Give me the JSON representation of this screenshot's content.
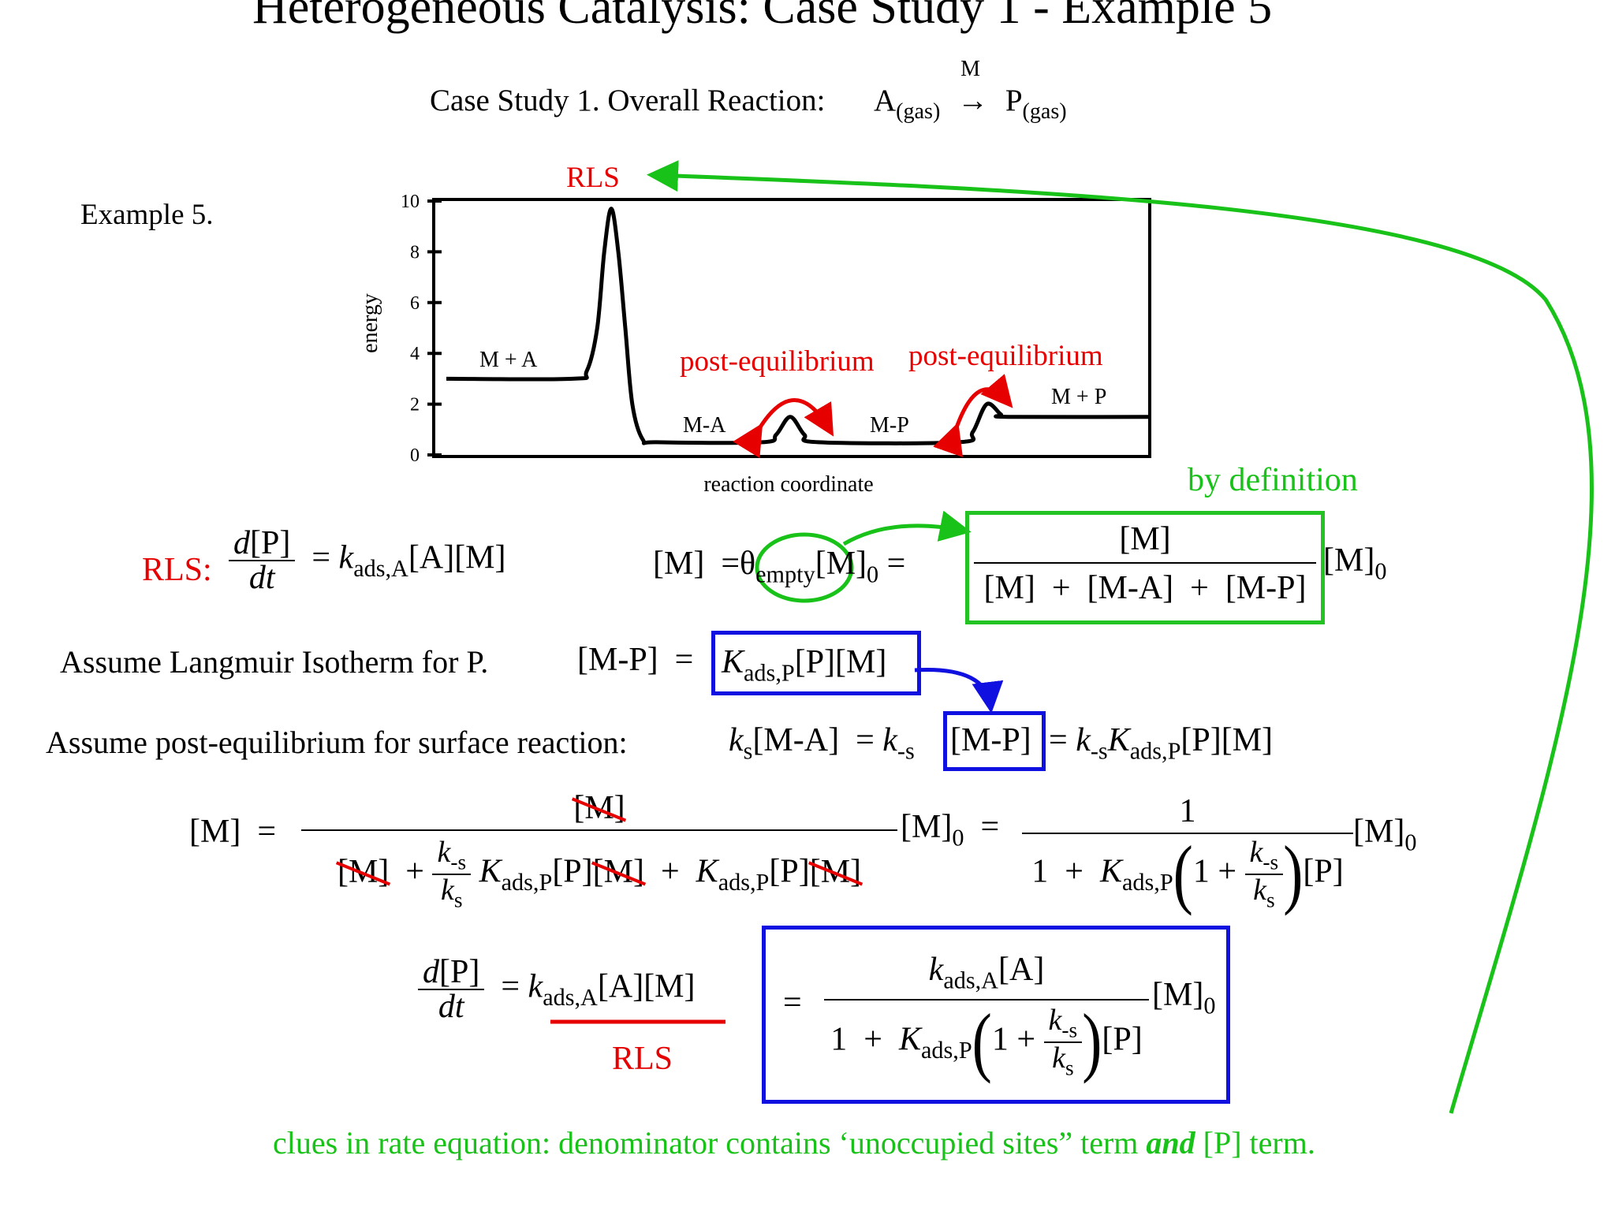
{
  "slide": {
    "title": "Heterogeneous Catalysis: Case Study 1 - Example 5",
    "case_study": "Case Study 1.  Overall Reaction:",
    "reaction_A": "A",
    "reaction_A_sub": "(gas)",
    "reaction_arrow": "→",
    "reaction_catalyst": "M",
    "reaction_P": "P",
    "reaction_P_sub": "(gas)",
    "example_label": "Example 5."
  },
  "chart_data": {
    "type": "line",
    "ylabel": "energy",
    "xlabel": "reaction coordinate",
    "ylim": [
      0,
      10
    ],
    "yticks": [
      "0",
      "2",
      "4",
      "6",
      "8",
      "10"
    ],
    "curve": [
      [
        0.0,
        3.0
      ],
      [
        0.18,
        3.0
      ],
      [
        0.2,
        3.3
      ],
      [
        0.215,
        5
      ],
      [
        0.225,
        8
      ],
      [
        0.235,
        9.7
      ],
      [
        0.245,
        8
      ],
      [
        0.255,
        5
      ],
      [
        0.265,
        2
      ],
      [
        0.28,
        0.6
      ],
      [
        0.3,
        0.5
      ],
      [
        0.45,
        0.5
      ],
      [
        0.47,
        0.8
      ],
      [
        0.49,
        1.5
      ],
      [
        0.51,
        0.8
      ],
      [
        0.53,
        0.5
      ],
      [
        0.73,
        0.5
      ],
      [
        0.75,
        0.9
      ],
      [
        0.77,
        2.0
      ],
      [
        0.79,
        1.6
      ],
      [
        0.8,
        1.5
      ],
      [
        1.0,
        1.5
      ]
    ],
    "labels": {
      "m_plus_a": "M + A",
      "m_a": "M-A",
      "m_p": "M-P",
      "m_plus_p": "M + P",
      "rls": "RLS",
      "post_eq_1": "post-equilibrium",
      "post_eq_2": "post-equilibrium"
    }
  },
  "equations": {
    "rls_label": "RLS:",
    "by_definition": "by definition",
    "langmuir_text": "Assume Langmuir Isotherm for P.",
    "post_eq_text": "Assume post-equilibrium for surface reaction:",
    "rls_under": "RLS",
    "clue_part1": "clues in rate equation:  denominator contains ‘unoccupied sites” term ",
    "clue_and": "and",
    "clue_part2": " [P] term."
  },
  "colors": {
    "red": "#e60000",
    "green": "#19c219",
    "blue": "#1010e0"
  }
}
